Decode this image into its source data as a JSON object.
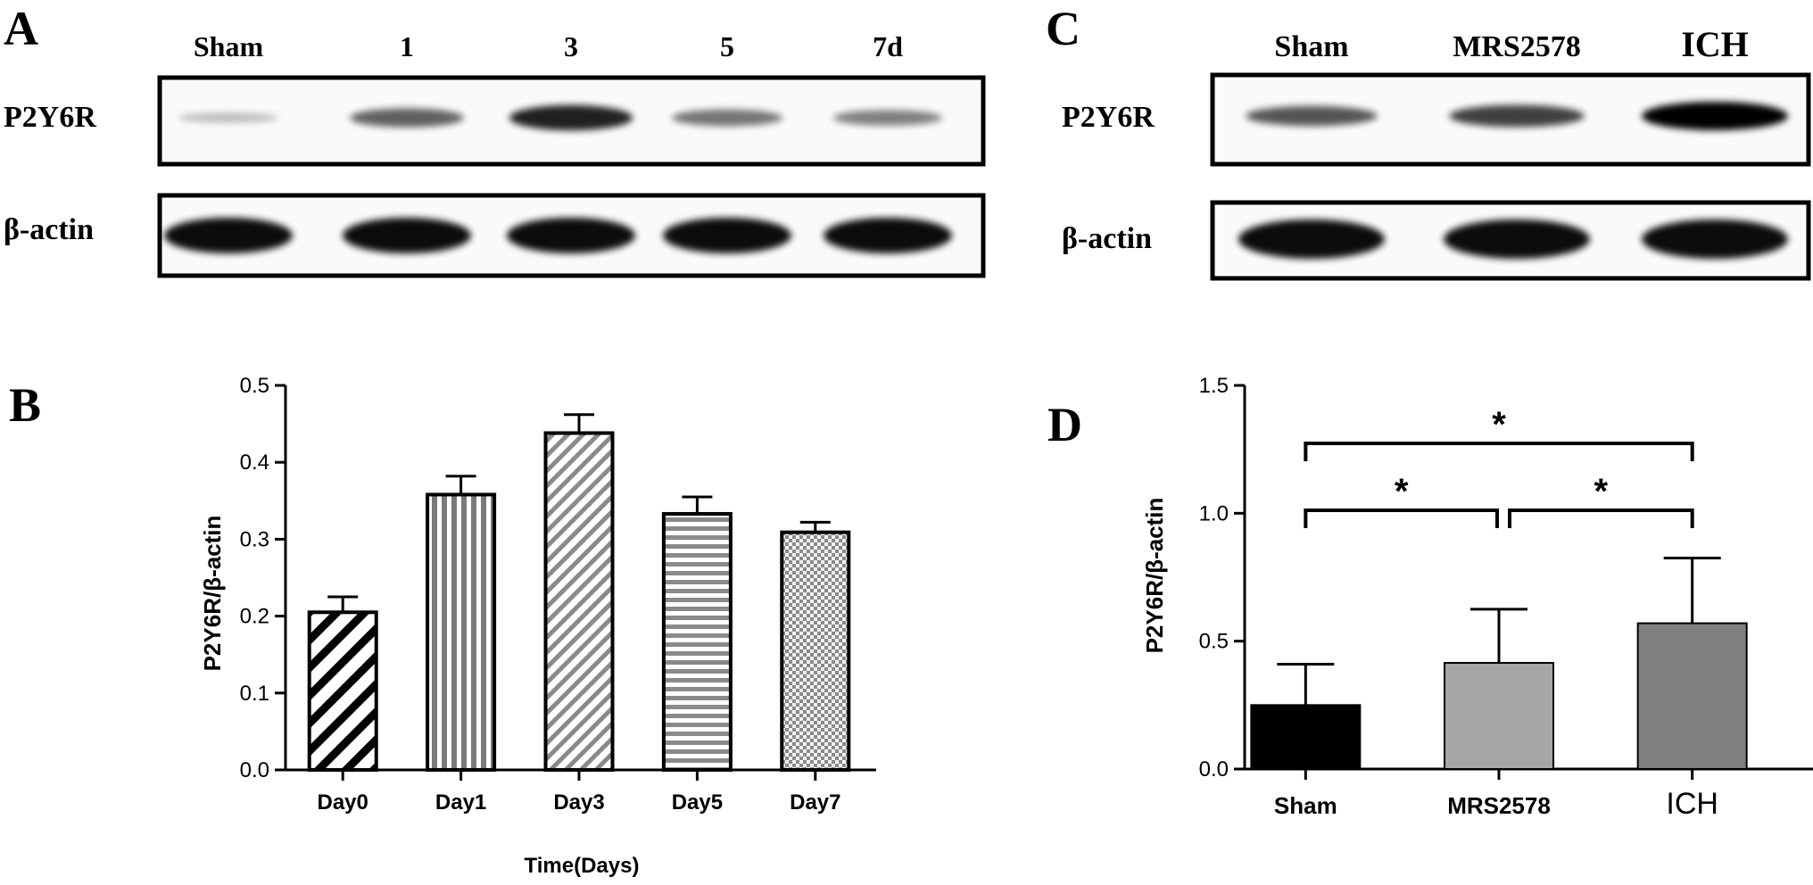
{
  "panels": {
    "a": {
      "letter": "A",
      "lanes": [
        "Sham",
        "1",
        "3",
        "5",
        "7d"
      ],
      "row_labels": [
        "P2Y6R",
        "β-actin"
      ],
      "p2y6r_band_intensity": [
        0.12,
        0.55,
        0.85,
        0.45,
        0.4
      ],
      "actin_band_intensity": [
        1,
        1,
        1,
        1,
        1
      ]
    },
    "c": {
      "letter": "C",
      "lanes": [
        "Sham",
        "MRS2578",
        "ICH"
      ],
      "row_labels": [
        "P2Y6R",
        "β-actin"
      ],
      "p2y6r_band_intensity": [
        0.6,
        0.7,
        1
      ],
      "actin_band_intensity": [
        1,
        1,
        1
      ]
    },
    "b": {
      "letter": "B"
    },
    "d": {
      "letter": "D"
    }
  },
  "chart_data": [
    {
      "type": "bar",
      "panel": "B",
      "categories": [
        "Day0",
        "Day1",
        "Day3",
        "Day5",
        "Day7"
      ],
      "values": [
        0.205,
        0.358,
        0.438,
        0.333,
        0.309
      ],
      "errors": [
        0.02,
        0.024,
        0.024,
        0.022,
        0.013
      ],
      "patterns": [
        "diag-thick",
        "vertical",
        "diag-thin",
        "horizontal",
        "checker"
      ],
      "ylabel": "P2Y6R/β-actin",
      "xlabel": "Time(Days)",
      "ylim": [
        0,
        0.5
      ],
      "yticks": [
        "0.0",
        "0.1",
        "0.2",
        "0.3",
        "0.4",
        "0.5"
      ],
      "grid": false
    },
    {
      "type": "bar",
      "panel": "D",
      "categories": [
        "Sham",
        "MRS2578",
        "ICH"
      ],
      "values": [
        0.25,
        0.415,
        0.57
      ],
      "errors": [
        0.16,
        0.21,
        0.255
      ],
      "colors": [
        "#000000",
        "#a6a6a6",
        "#808080"
      ],
      "ylabel": "P2Y6R/β-actin",
      "ylim": [
        0,
        1.5
      ],
      "yticks": [
        "0.0",
        "0.5",
        "1.0",
        "1.5"
      ],
      "significance": [
        {
          "from": 0,
          "to": 2,
          "label": "*"
        },
        {
          "from": 0,
          "to": 1,
          "label": "*"
        },
        {
          "from": 1,
          "to": 2,
          "label": "*"
        }
      ],
      "grid": false
    }
  ]
}
